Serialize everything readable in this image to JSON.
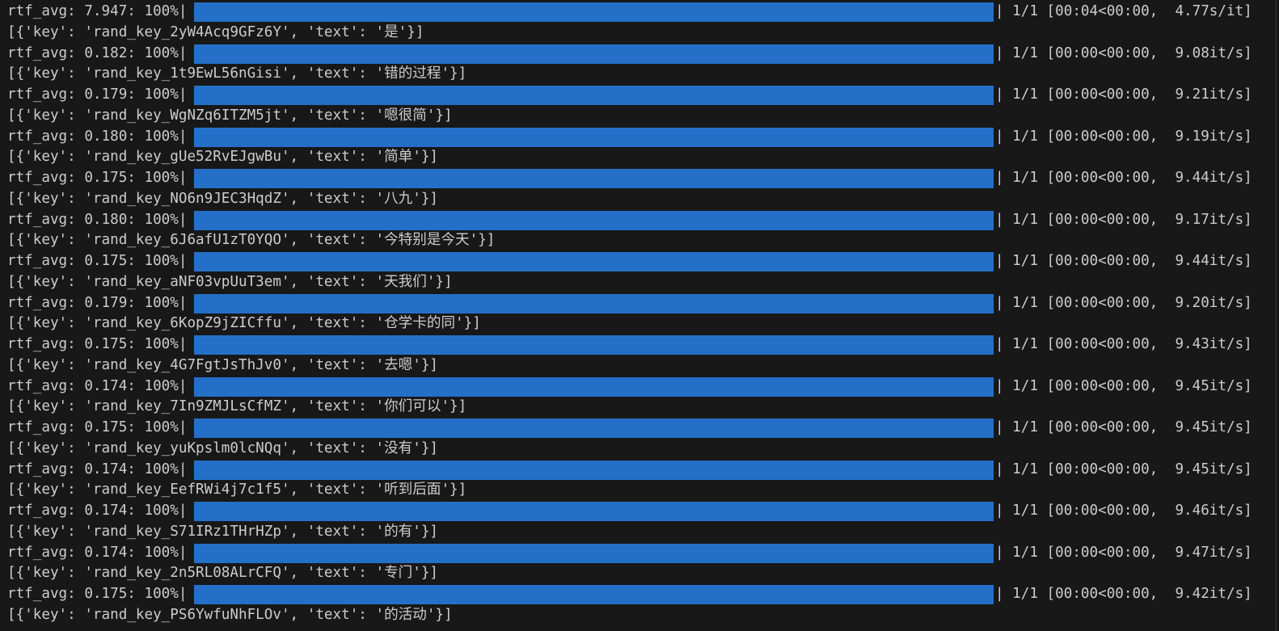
{
  "colors": {
    "background": "#181818",
    "text": "#cccccc",
    "progress_bar": "#2470c8"
  },
  "entries": [
    {
      "rtf": "rtf_avg: 7.947: 100%|",
      "stats": "| 1/1 [00:04<00:00,  4.77s/it]",
      "progress": 100,
      "result": "[{'key': 'rand_key_2yW4Acq9GFz6Y', 'text': '是'}]"
    },
    {
      "rtf": "rtf_avg: 0.182: 100%|",
      "stats": "| 1/1 [00:00<00:00,  9.08it/s]",
      "progress": 100,
      "result": "[{'key': 'rand_key_1t9EwL56nGisi', 'text': '错的过程'}]"
    },
    {
      "rtf": "rtf_avg: 0.179: 100%|",
      "stats": "| 1/1 [00:00<00:00,  9.21it/s]",
      "progress": 100,
      "result": "[{'key': 'rand_key_WgNZq6ITZM5jt', 'text': '嗯很简'}]"
    },
    {
      "rtf": "rtf_avg: 0.180: 100%|",
      "stats": "| 1/1 [00:00<00:00,  9.19it/s]",
      "progress": 100,
      "result": "[{'key': 'rand_key_gUe52RvEJgwBu', 'text': '简单'}]"
    },
    {
      "rtf": "rtf_avg: 0.175: 100%|",
      "stats": "| 1/1 [00:00<00:00,  9.44it/s]",
      "progress": 100,
      "result": "[{'key': 'rand_key_NO6n9JEC3HqdZ', 'text': '八九'}]"
    },
    {
      "rtf": "rtf_avg: 0.180: 100%|",
      "stats": "| 1/1 [00:00<00:00,  9.17it/s]",
      "progress": 100,
      "result": "[{'key': 'rand_key_6J6afU1zT0YQO', 'text': '今特别是今天'}]"
    },
    {
      "rtf": "rtf_avg: 0.175: 100%|",
      "stats": "| 1/1 [00:00<00:00,  9.44it/s]",
      "progress": 100,
      "result": "[{'key': 'rand_key_aNF03vpUuT3em', 'text': '天我们'}]"
    },
    {
      "rtf": "rtf_avg: 0.179: 100%|",
      "stats": "| 1/1 [00:00<00:00,  9.20it/s]",
      "progress": 100,
      "result": "[{'key': 'rand_key_6KopZ9jZICffu', 'text': '仓学卡的同'}]"
    },
    {
      "rtf": "rtf_avg: 0.175: 100%|",
      "stats": "| 1/1 [00:00<00:00,  9.43it/s]",
      "progress": 100,
      "result": "[{'key': 'rand_key_4G7FgtJsThJv0', 'text': '去嗯'}]"
    },
    {
      "rtf": "rtf_avg: 0.174: 100%|",
      "stats": "| 1/1 [00:00<00:00,  9.45it/s]",
      "progress": 100,
      "result": "[{'key': 'rand_key_7In9ZMJLsCfMZ', 'text': '你们可以'}]"
    },
    {
      "rtf": "rtf_avg: 0.175: 100%|",
      "stats": "| 1/1 [00:00<00:00,  9.45it/s]",
      "progress": 100,
      "result": "[{'key': 'rand_key_yuKpslm0lcNQq', 'text': '没有'}]"
    },
    {
      "rtf": "rtf_avg: 0.174: 100%|",
      "stats": "| 1/1 [00:00<00:00,  9.45it/s]",
      "progress": 100,
      "result": "[{'key': 'rand_key_EefRWi4j7c1f5', 'text': '听到后面'}]"
    },
    {
      "rtf": "rtf_avg: 0.174: 100%|",
      "stats": "| 1/1 [00:00<00:00,  9.46it/s]",
      "progress": 100,
      "result": "[{'key': 'rand_key_S71IRz1THrHZp', 'text': '的有'}]"
    },
    {
      "rtf": "rtf_avg: 0.174: 100%|",
      "stats": "| 1/1 [00:00<00:00,  9.47it/s]",
      "progress": 100,
      "result": "[{'key': 'rand_key_2n5RL08ALrCFQ', 'text': '专门'}]"
    },
    {
      "rtf": "rtf_avg: 0.175: 100%|",
      "stats": "| 1/1 [00:00<00:00,  9.42it/s]",
      "progress": 100,
      "result": "[{'key': 'rand_key_PS6YwfuNhFLOv', 'text': '的活动'}]"
    }
  ]
}
